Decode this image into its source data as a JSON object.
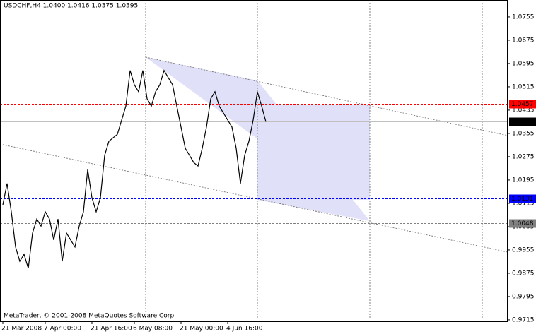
{
  "chart_data": {
    "type": "line",
    "title": "USDCHF,H4  1.0400 1.0416 1.0375 1.0395",
    "footer": "MetaTrader, © 2001-2008 MetaQuotes Software Corp.",
    "categories": [
      "21 Mar 2008",
      null,
      null,
      null,
      null,
      null,
      null,
      null,
      null,
      null,
      "7 Apr 00:00",
      null,
      null,
      null,
      null,
      null,
      null,
      null,
      null,
      null,
      null,
      "21 Apr 16:00",
      null,
      null,
      null,
      null,
      null,
      null,
      null,
      null,
      null,
      "6 May 08:00",
      null,
      null,
      null,
      null,
      null,
      null,
      null,
      null,
      null,
      null,
      "21 May 00:00",
      null,
      null,
      null,
      null,
      null,
      null,
      null,
      null,
      null,
      null,
      "4 Jun 16:00",
      null,
      null,
      null,
      null,
      null,
      null,
      null,
      null,
      null
    ],
    "values": [
      1.011,
      1.0183,
      1.0086,
      0.9965,
      0.9916,
      0.994,
      0.9892,
      1.0013,
      1.0061,
      1.0037,
      1.0086,
      1.0061,
      0.9989,
      1.0061,
      0.9916,
      1.0013,
      0.9989,
      0.9965,
      1.0037,
      1.0086,
      1.0231,
      1.0134,
      1.0086,
      1.0134,
      1.028,
      1.0328,
      1.034,
      1.0352,
      1.0401,
      1.0449,
      1.0571,
      1.0522,
      1.0498,
      1.0571,
      1.0474,
      1.0449,
      1.0498,
      1.0522,
      1.0571,
      1.0546,
      1.0522,
      1.0449,
      1.0377,
      1.0304,
      1.028,
      1.0255,
      1.0243,
      1.0304,
      1.0377,
      1.0474,
      1.0498,
      1.0449,
      1.0425,
      1.0401,
      1.0377,
      1.0304,
      1.0183,
      1.028,
      1.0328,
      1.0401,
      1.0498,
      1.0449,
      1.0395
    ],
    "color": "#000000",
    "ylim": [
      0.971,
      1.0813
    ],
    "yticks": [
      1.0755,
      1.0675,
      1.0595,
      1.0515,
      1.0435,
      1.0355,
      1.0275,
      1.0195,
      1.0115,
      1.0035,
      0.9955,
      0.9875,
      0.9795,
      0.9715
    ],
    "levels": [
      {
        "value": 1.0457,
        "color": "#ff0000",
        "style": "dashed",
        "label_bg": "#ff0000",
        "label_color": "#ffffff"
      },
      {
        "value": 1.0395,
        "color": "#c0c0c0",
        "style": "solid",
        "label_bg": "#000000",
        "label_color": "#ffffff"
      },
      {
        "value": 1.0131,
        "color": "#0000ff",
        "style": "dashed",
        "label_bg": "#0000ff",
        "label_color": "#ffffff"
      },
      {
        "value": 1.0048,
        "color": "#808080",
        "style": "dashed",
        "label_bg": "#808080",
        "label_color": "#ffffff"
      }
    ]
  }
}
